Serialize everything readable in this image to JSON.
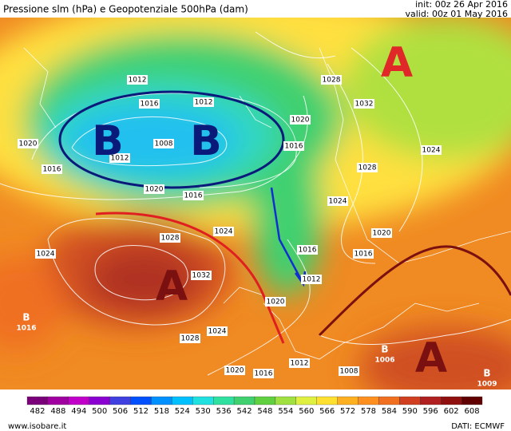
{
  "header": {
    "title": "Pressione slm (hPa) e Geopotenziale 500hPa (dam)",
    "init": "init: 00z 26 Apr 2016",
    "valid": "valid: 00z 01 May 2016"
  },
  "pressure_centers": [
    {
      "label": "B",
      "color": "#0a1a7a"
    },
    {
      "label": "B",
      "color": "#0a1a7a"
    },
    {
      "label": "A",
      "color": "#e02828"
    },
    {
      "label": "A",
      "color": "#7a1010"
    },
    {
      "label": "A",
      "color": "#7a1010"
    }
  ],
  "small_centers": [
    {
      "label": "B",
      "pressure": "1016"
    },
    {
      "label": "B",
      "pressure": "1006"
    },
    {
      "label": "B",
      "pressure": "1009"
    }
  ],
  "isobar_labels": [
    "1012",
    "1016",
    "1012",
    "1008",
    "1012",
    "1016",
    "1020",
    "1020",
    "1016",
    "1020",
    "1016",
    "1028",
    "1032",
    "1024",
    "1028",
    "1024",
    "1020",
    "1016",
    "1016",
    "1012",
    "1020",
    "1024",
    "1028",
    "1032",
    "1024",
    "1028",
    "1024",
    "1020",
    "1016",
    "1012",
    "1008"
  ],
  "colorbar": {
    "values": [
      482,
      488,
      494,
      500,
      506,
      512,
      518,
      524,
      530,
      536,
      542,
      548,
      554,
      560,
      566,
      572,
      578,
      584,
      590,
      596,
      602,
      608
    ],
    "colors": [
      "#7a007a",
      "#a000a0",
      "#c000c8",
      "#8a00d0",
      "#4040e0",
      "#0050ff",
      "#0090ff",
      "#00c0ff",
      "#20e0e0",
      "#30e0a0",
      "#40d070",
      "#60d040",
      "#a0e040",
      "#e0f040",
      "#ffe030",
      "#ffb020",
      "#ff9020",
      "#f07020",
      "#d04020",
      "#b02020",
      "#901010",
      "#600000"
    ]
  },
  "footer": {
    "website": "www.isobare.it",
    "source": "DATI: ECMWF"
  }
}
